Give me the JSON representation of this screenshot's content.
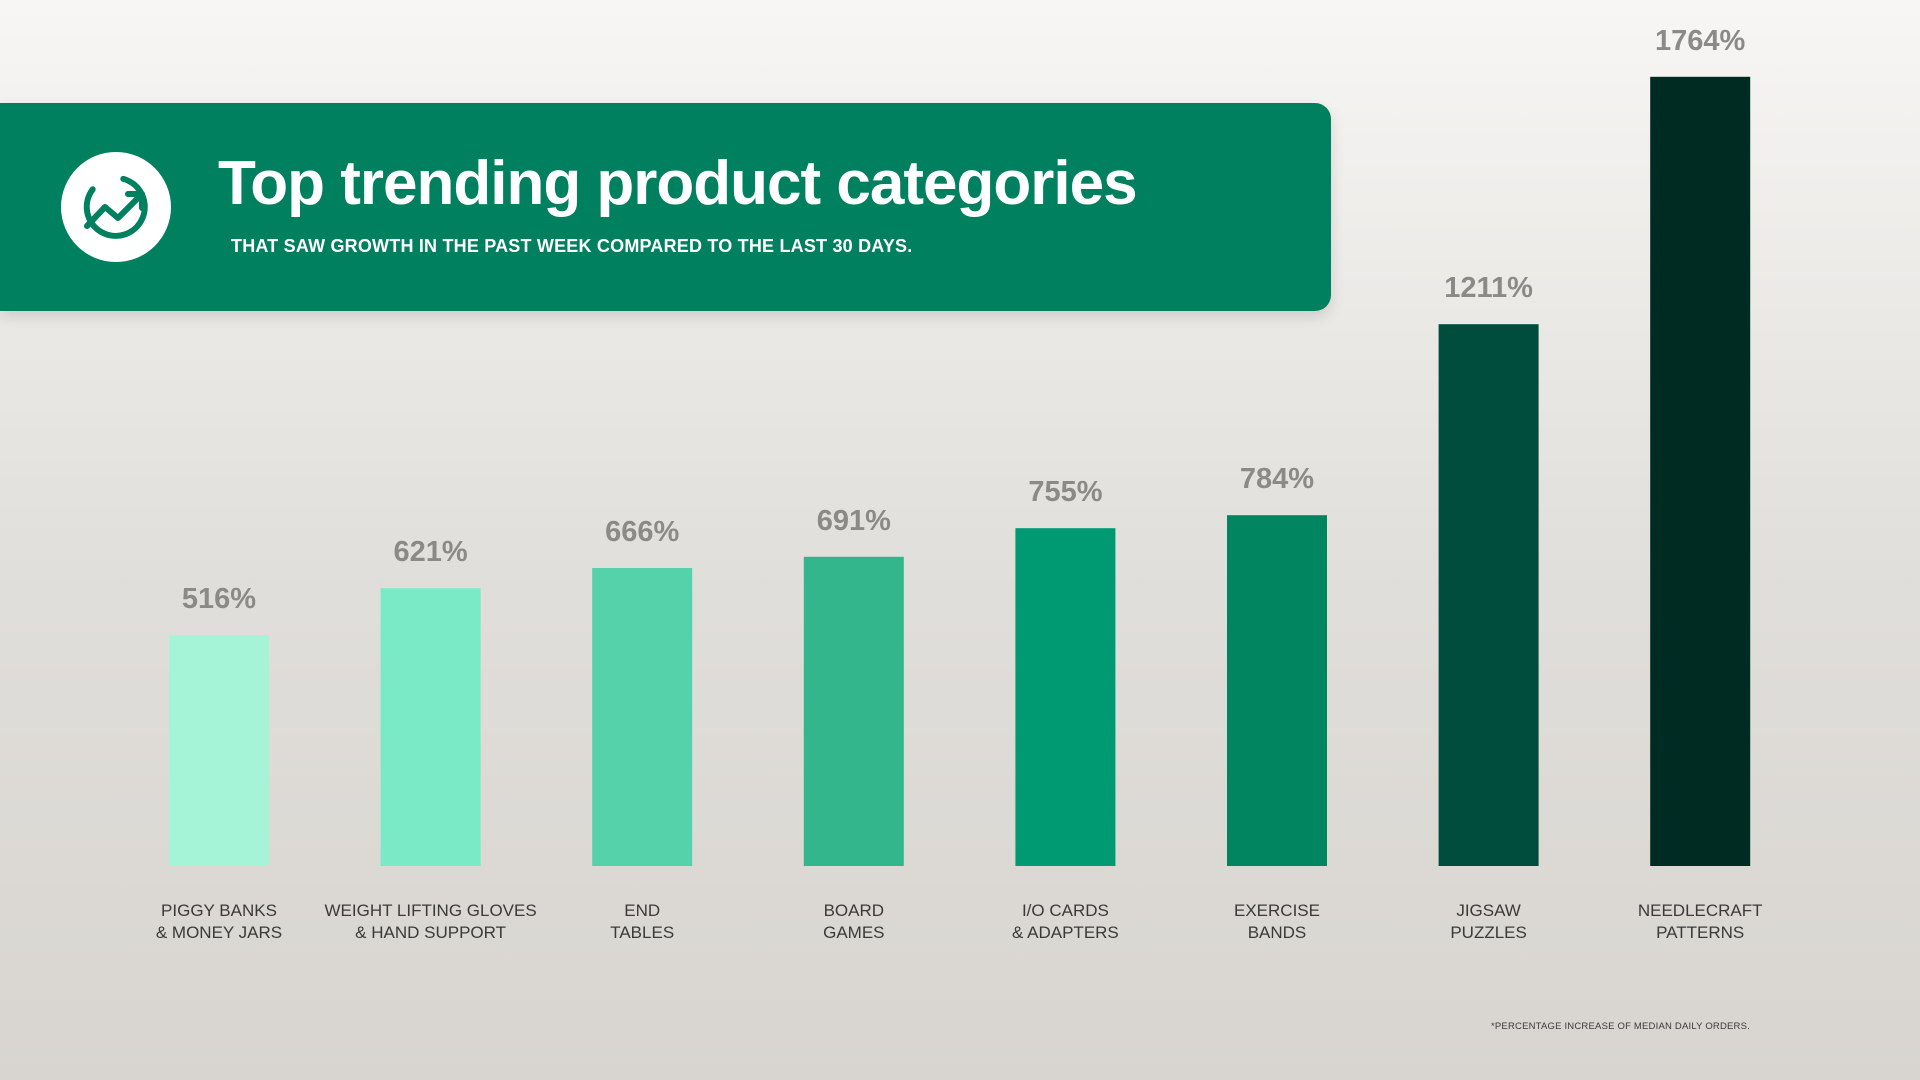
{
  "header": {
    "title": "Top trending product categories",
    "subtitle": "THAT SAW GROWTH IN THE PAST WEEK COMPARED TO THE LAST 30 DAYS.",
    "icon": "trending-up-icon"
  },
  "chart_data": {
    "type": "bar",
    "categories": [
      [
        "PIGGY BANKS",
        "& MONEY JARS"
      ],
      [
        "WEIGHT LIFTING GLOVES",
        "& HAND SUPPORT"
      ],
      [
        "END",
        "TABLES"
      ],
      [
        "BOARD",
        "GAMES"
      ],
      [
        "I/O CARDS",
        "& ADAPTERS"
      ],
      [
        "EXERCISE",
        "BANDS"
      ],
      [
        "JIGSAW",
        "PUZZLES"
      ],
      [
        "NEEDLECRAFT",
        "PATTERNS"
      ]
    ],
    "values": [
      516,
      621,
      666,
      691,
      755,
      784,
      1211,
      1764
    ],
    "value_labels": [
      "516%",
      "621%",
      "666%",
      "691%",
      "755%",
      "784%",
      "1211%",
      "1764%"
    ],
    "colors": [
      "#a6f4d8",
      "#7ae9c5",
      "#55d2aa",
      "#33b68c",
      "#009a72",
      "#008561",
      "#004d3d",
      "#002b22"
    ],
    "title": "Top trending product categories",
    "xlabel": "",
    "ylabel": "",
    "grid": false,
    "legend": "none"
  },
  "footnote": "*PERCENTAGE INCREASE OF MEDIAN DAILY ORDERS."
}
